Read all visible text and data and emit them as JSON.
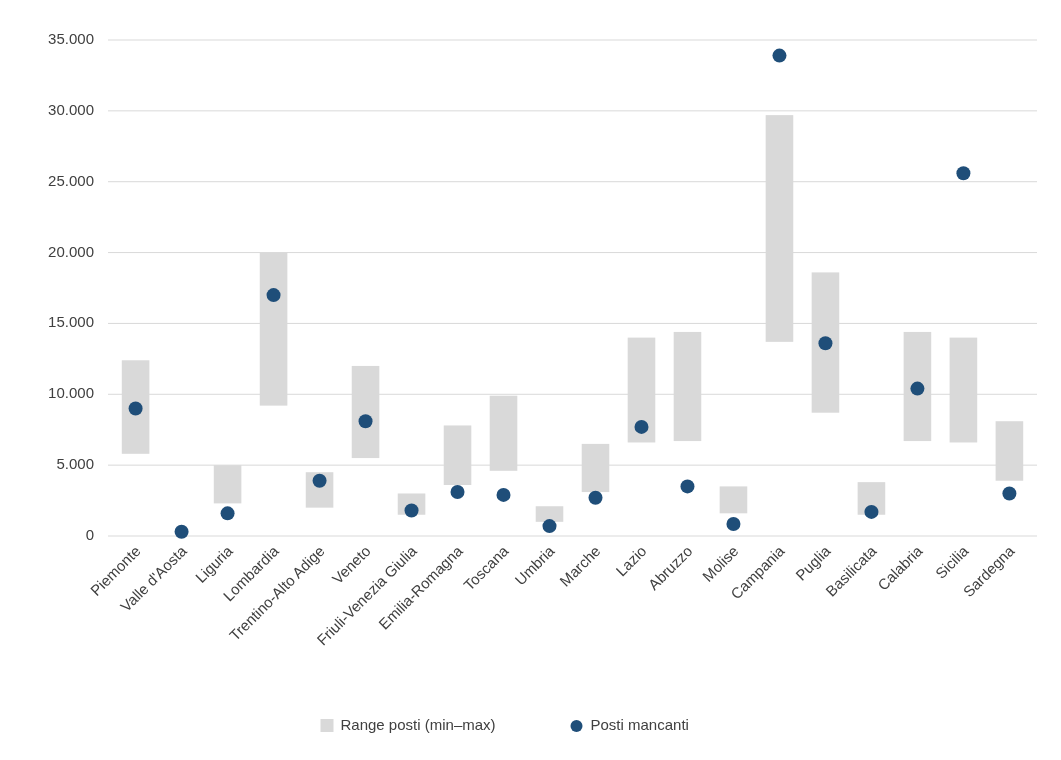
{
  "chart_data": {
    "type": "bar",
    "categories": [
      "Piemonte",
      "Valle d'Aosta",
      "Liguria",
      "Lombardia",
      "Trentino-Alto Adige",
      "Veneto",
      "Friuli-Venezia Giulia",
      "Emilia-Romagna",
      "Toscana",
      "Umbria",
      "Marche",
      "Lazio",
      "Abruzzo",
      "Molise",
      "Campania",
      "Puglia",
      "Basilicata",
      "Calabria",
      "Sicilia",
      "Sardegna"
    ],
    "series": [
      {
        "name": "Range posti (min–max)",
        "type": "bar",
        "color": "#d9d9d9",
        "base": [
          5800,
          null,
          2300,
          9200,
          2000,
          5500,
          1500,
          3600,
          4600,
          1000,
          3100,
          6600,
          6700,
          1600,
          13700,
          8700,
          1500,
          6700,
          6600,
          3900
        ],
        "values": [
          6600,
          null,
          2700,
          10800,
          2500,
          6500,
          1500,
          4200,
          5300,
          1100,
          3400,
          7400,
          7700,
          1900,
          16000,
          9900,
          2300,
          7700,
          7400,
          4200
        ]
      },
      {
        "name": "Posti mancanti",
        "type": "scatter",
        "color": "#1f4e79",
        "x": [
          "Piemonte",
          "Valle d'Aosta",
          "Liguria",
          "Lombardia",
          "Trentino-Alto Adige",
          "Veneto",
          "Friuli-Venezia Giulia",
          "Emilia-Romagna",
          "Toscana",
          "Umbria",
          "Marche",
          "Lazio",
          "Abruzzo",
          "Molise",
          "Campania",
          "Puglia",
          "Basilicata",
          "Calabria",
          "Sicilia",
          "Sardegna"
        ],
        "values": [
          9000,
          300,
          1600,
          17000,
          3900,
          8100,
          1800,
          3100,
          2900,
          700,
          2700,
          7700,
          3500,
          850,
          33900,
          13600,
          1700,
          10400,
          25600,
          3000
        ]
      }
    ],
    "ylim": [
      0,
      35000
    ],
    "yticks": [
      0,
      {
        "value": 5000,
        "label": "5.000"
      },
      {
        "value": 10000,
        "label": "10.000"
      },
      {
        "value": 15000,
        "label": "15.000"
      },
      {
        "value": 20000,
        "label": "20.000"
      },
      {
        "value": 25000,
        "label": "25.000"
      },
      {
        "value": 30000,
        "label": "30.000"
      },
      {
        "value": 35000,
        "label": "35.000"
      }
    ],
    "grid": "y",
    "legend": "bottom",
    "marker": "circle"
  }
}
